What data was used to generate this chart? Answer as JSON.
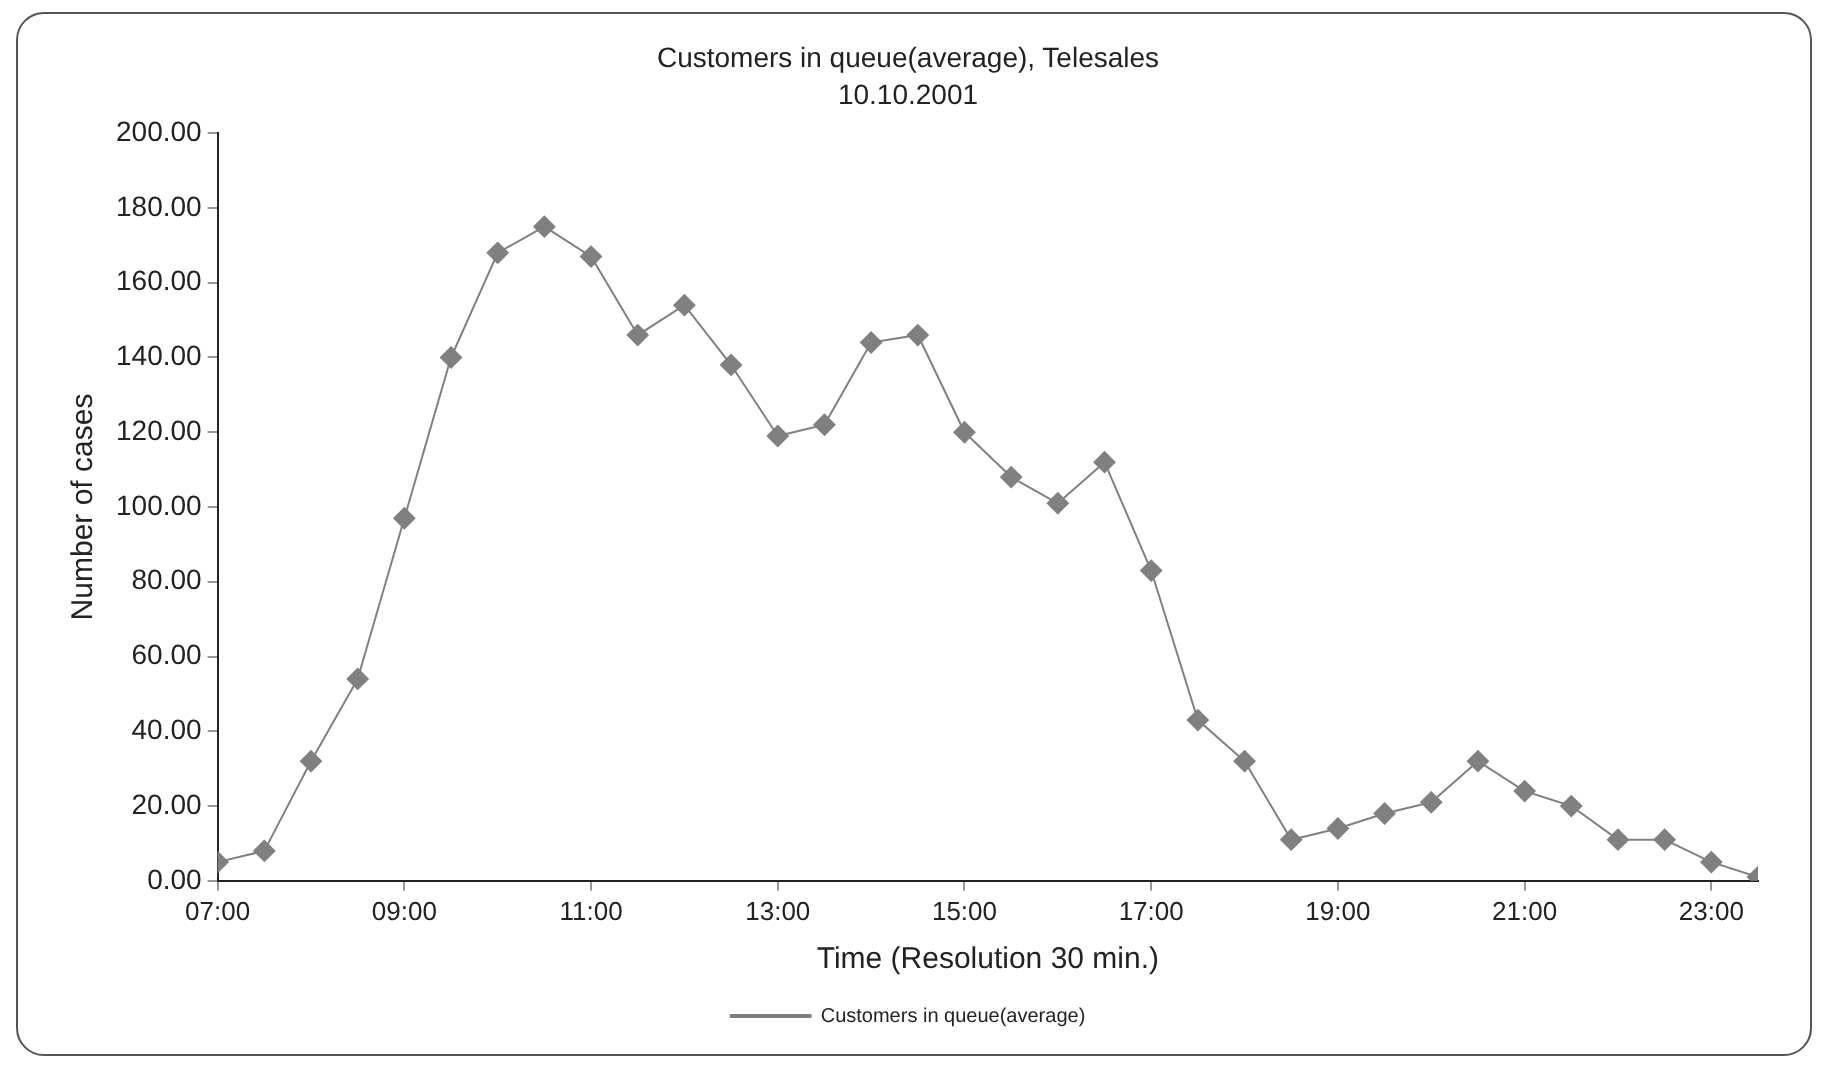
{
  "chart_data": {
    "type": "line",
    "title": "Customers in queue(average), Telesales",
    "subtitle": "10.10.2001",
    "xlabel": "Time (Resolution 30 min.)",
    "ylabel": "Number of cases",
    "x": [
      7,
      7.5,
      8,
      8.5,
      9,
      9.5,
      10,
      10.5,
      11,
      11.5,
      12,
      12.5,
      13,
      13.5,
      14,
      14.5,
      15,
      15.5,
      16,
      16.5,
      17,
      17.5,
      18,
      18.5,
      19,
      19.5,
      20,
      20.5,
      21,
      21.5,
      22,
      22.5,
      23,
      23.5
    ],
    "series": [
      {
        "name": "Customers in queue(average)",
        "color": "#808080",
        "values": [
          5,
          8,
          32,
          54,
          97,
          140,
          168,
          175,
          167,
          146,
          154,
          138,
          119,
          122,
          144,
          146,
          120,
          108,
          101,
          112,
          83,
          43,
          32,
          11,
          14,
          18,
          21,
          32,
          24,
          20,
          11,
          11,
          5,
          1
        ]
      }
    ],
    "xlim": [
      7,
      23.5
    ],
    "xticks": [
      {
        "value": 7,
        "label": "07:00"
      },
      {
        "value": 9,
        "label": "09:00"
      },
      {
        "value": 11,
        "label": "11:00"
      },
      {
        "value": 13,
        "label": "13:00"
      },
      {
        "value": 15,
        "label": "15:00"
      },
      {
        "value": 17,
        "label": "17:00"
      },
      {
        "value": 19,
        "label": "19:00"
      },
      {
        "value": 21,
        "label": "21:00"
      },
      {
        "value": 23,
        "label": "23:00"
      }
    ],
    "ylim": [
      0,
      200
    ],
    "yticks": [
      {
        "value": 0,
        "label": "0.00"
      },
      {
        "value": 20,
        "label": "20.00"
      },
      {
        "value": 40,
        "label": "40.00"
      },
      {
        "value": 60,
        "label": "60.00"
      },
      {
        "value": 80,
        "label": "80.00"
      },
      {
        "value": 100,
        "label": "100.00"
      },
      {
        "value": 120,
        "label": "120.00"
      },
      {
        "value": 140,
        "label": "140.00"
      },
      {
        "value": 160,
        "label": "160.00"
      },
      {
        "value": 180,
        "label": "180.00"
      },
      {
        "value": 200,
        "label": "200.00"
      }
    ],
    "grid": false,
    "legend": "bottom",
    "marker": "diamond",
    "line_style": "solid"
  }
}
